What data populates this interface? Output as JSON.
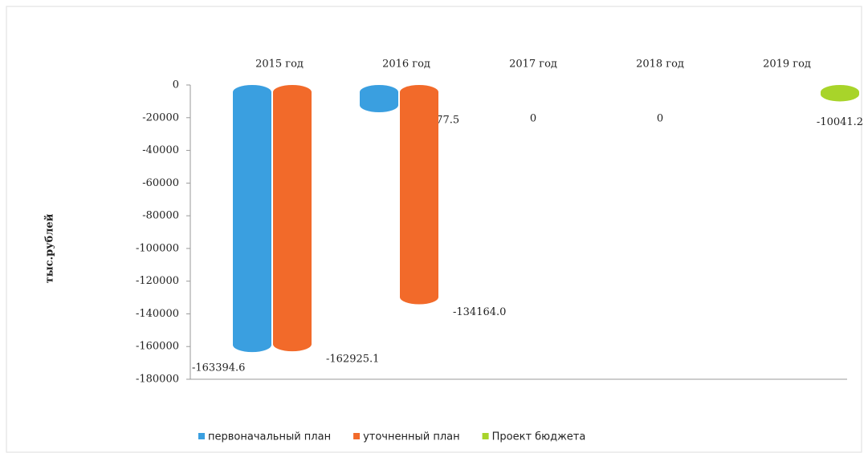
{
  "chart_data": {
    "type": "bar",
    "y_label": "тыс.рублей",
    "categories": [
      "2015 год",
      "2016 год",
      "2017 год",
      "2018 год",
      "2019 год"
    ],
    "series": [
      {
        "name": "первоначальный план",
        "color": "#3a9fe0",
        "values": [
          -163394.6,
          -16677.5,
          null,
          null,
          null
        ]
      },
      {
        "name": "уточненный план",
        "color": "#f26a2a",
        "values": [
          -162925.1,
          -134164,
          null,
          null,
          null
        ],
        "value_labels": [
          "-162925.1",
          "-134164.0",
          null,
          null,
          null
        ]
      },
      {
        "name": "Проект бюджета",
        "color": "#a8d42a",
        "values": [
          null,
          null,
          0,
          0,
          -10041.2
        ]
      }
    ],
    "ylim": [
      -180000,
      0
    ],
    "yticks": [
      0,
      -20000,
      -40000,
      -60000,
      -80000,
      -100000,
      -120000,
      -140000,
      -160000,
      -180000
    ]
  }
}
